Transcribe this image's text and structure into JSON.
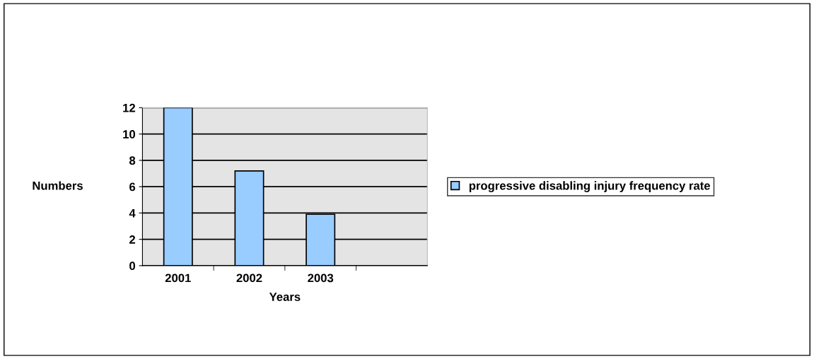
{
  "chart_data": {
    "type": "bar",
    "xlabel": "Years",
    "ylabel": "Numbers",
    "categories": [
      "2001",
      "2002",
      "2003",
      null
    ],
    "series": [
      {
        "name": "progressive disabling injury frequency rate",
        "color": "#99ccff",
        "values": [
          12,
          7.2,
          3.9,
          null
        ]
      }
    ],
    "ylim": [
      0,
      12
    ],
    "yticks": [
      0,
      2,
      4,
      6,
      8,
      10,
      12
    ],
    "grid": "y",
    "legend": "right"
  }
}
